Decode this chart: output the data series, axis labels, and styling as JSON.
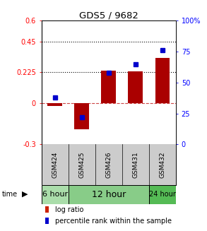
{
  "title": "GDS5 / 9682",
  "samples": [
    "GSM424",
    "GSM425",
    "GSM426",
    "GSM431",
    "GSM432"
  ],
  "log_ratio": [
    -0.02,
    -0.19,
    0.235,
    0.23,
    0.33
  ],
  "percentile_rank_pct": [
    38,
    22,
    58,
    65,
    76
  ],
  "ylim_left": [
    -0.3,
    0.6
  ],
  "ylim_right": [
    0,
    100
  ],
  "yticks_left": [
    -0.3,
    0.0,
    0.225,
    0.45,
    0.6
  ],
  "ytick_labels_left": [
    "-0.3",
    "0",
    "0.225",
    "0.45",
    "0.6"
  ],
  "yticks_right": [
    0,
    25,
    50,
    75,
    100
  ],
  "ytick_labels_right": [
    "0",
    "25",
    "50",
    "75",
    "100%"
  ],
  "hlines": [
    0.225,
    0.45
  ],
  "bar_color": "#aa0000",
  "dot_color": "#0000cc",
  "zero_line_color": "#cc4444",
  "background_color": "#ffffff",
  "sample_bg_color": "#cccccc",
  "time_colors": [
    "#aaddaa",
    "#88cc88",
    "#55bb55"
  ],
  "time_data": [
    {
      "start": 0,
      "end": 1,
      "label": "6 hour",
      "color": "#aaddaa",
      "fontsize": 8
    },
    {
      "start": 1,
      "end": 4,
      "label": "12 hour",
      "color": "#88cc88",
      "fontsize": 9
    },
    {
      "start": 4,
      "end": 5,
      "label": "24 hour",
      "color": "#55bb55",
      "fontsize": 7
    }
  ],
  "legend_log_color": "#cc2200",
  "legend_pct_color": "#0000cc"
}
